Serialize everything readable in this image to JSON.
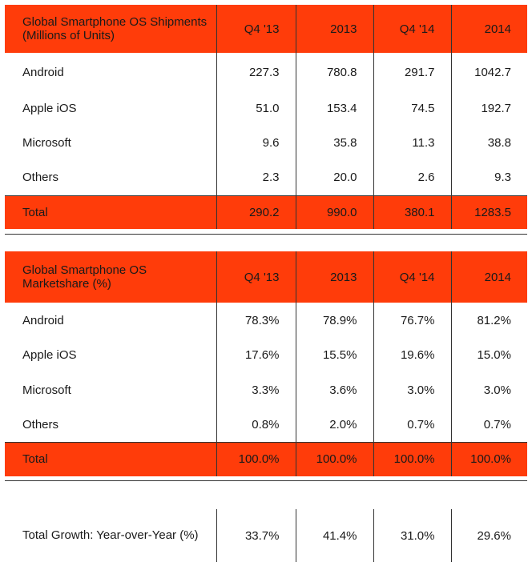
{
  "tables": [
    {
      "header": [
        "Global Smartphone OS Shipments (Millions of Units)",
        "Q4 '13",
        "2013",
        "Q4 '14",
        "2014"
      ],
      "rows": [
        [
          "Android",
          "227.3",
          "780.8",
          "291.7",
          "1042.7"
        ],
        [
          "Apple iOS",
          "51.0",
          "153.4",
          "74.5",
          "192.7"
        ],
        [
          "Microsoft",
          "9.6",
          "35.8",
          "11.3",
          "38.8"
        ],
        [
          "Others",
          "2.3",
          "20.0",
          "2.6",
          "9.3"
        ]
      ],
      "total": [
        "Total",
        "290.2",
        "990.0",
        "380.1",
        "1283.5"
      ]
    },
    {
      "header": [
        "Global Smartphone OS Marketshare (%)",
        "Q4 '13",
        "2013",
        "Q4 '14",
        "2014"
      ],
      "rows": [
        [
          "Android",
          "78.3%",
          "78.9%",
          "76.7%",
          "81.2%"
        ],
        [
          "Apple iOS",
          "17.6%",
          "15.5%",
          "19.6%",
          "15.0%"
        ],
        [
          "Microsoft",
          "3.3%",
          "3.6%",
          "3.0%",
          "3.0%"
        ],
        [
          "Others",
          "0.8%",
          "2.0%",
          "0.7%",
          "0.7%"
        ]
      ],
      "total": [
        "Total",
        "100.0%",
        "100.0%",
        "100.0%",
        "100.0%"
      ]
    }
  ],
  "growth": [
    "Total Growth: Year-over-Year (%)",
    "33.7%",
    "41.4%",
    "31.0%",
    "29.6%"
  ],
  "colors": {
    "header_bg": "#ff3c0a",
    "border": "#333333"
  },
  "chart_data": {
    "type": "table",
    "columns": [
      "Q4 '13",
      "2013",
      "Q4 '14",
      "2014"
    ],
    "shipments_millions_of_units": {
      "Android": [
        227.3,
        780.8,
        291.7,
        1042.7
      ],
      "Apple iOS": [
        51.0,
        153.4,
        74.5,
        192.7
      ],
      "Microsoft": [
        9.6,
        35.8,
        11.3,
        38.8
      ],
      "Others": [
        2.3,
        20.0,
        2.6,
        9.3
      ],
      "Total": [
        290.2,
        990.0,
        380.1,
        1283.5
      ]
    },
    "marketshare_percent": {
      "Android": [
        78.3,
        78.9,
        76.7,
        81.2
      ],
      "Apple iOS": [
        17.6,
        15.5,
        19.6,
        15.0
      ],
      "Microsoft": [
        3.3,
        3.6,
        3.0,
        3.0
      ],
      "Others": [
        0.8,
        2.0,
        0.7,
        0.7
      ],
      "Total": [
        100.0,
        100.0,
        100.0,
        100.0
      ]
    },
    "total_growth_yoy_percent": [
      33.7,
      41.4,
      31.0,
      29.6
    ]
  }
}
